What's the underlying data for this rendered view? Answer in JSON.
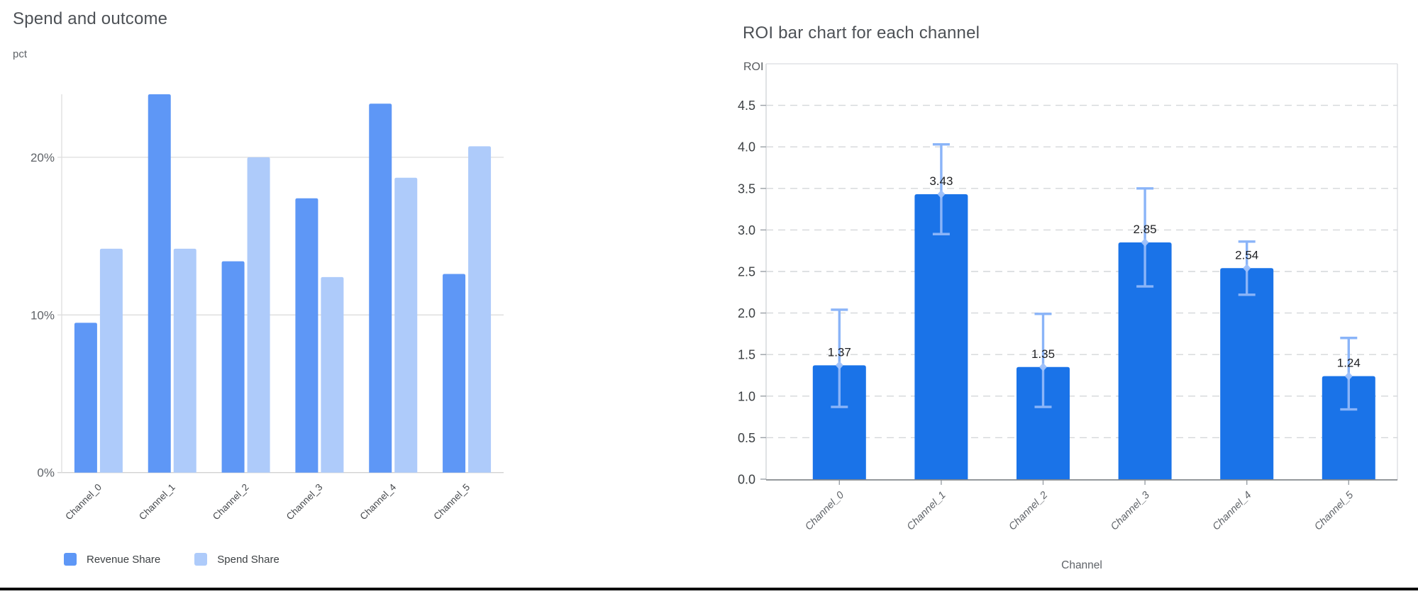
{
  "colors": {
    "revenue_share": "#5e97f6",
    "spend_share": "#aecbfa",
    "roi_bar": "#1a73e8",
    "roi_error": "#8ab4f8"
  },
  "chart_data": [
    {
      "type": "bar",
      "title": "Spend and outcome",
      "ylabel": "pct",
      "xlabel": "",
      "categories": [
        "Channel_0",
        "Channel_1",
        "Channel_2",
        "Channel_3",
        "Channel_4",
        "Channel_5"
      ],
      "series": [
        {
          "name": "Revenue Share",
          "color": "#5e97f6",
          "values": [
            9.5,
            24.0,
            13.4,
            17.4,
            23.4,
            12.6
          ]
        },
        {
          "name": "Spend Share",
          "color": "#aecbfa",
          "values": [
            14.2,
            14.2,
            20.0,
            12.4,
            18.7,
            20.7
          ]
        }
      ],
      "y_ticks": [
        {
          "label": "0%",
          "value": 0
        },
        {
          "label": "10%",
          "value": 10
        },
        {
          "label": "20%",
          "value": 20
        }
      ],
      "ylim": [
        0,
        24.0
      ],
      "grid": true,
      "legend_position": "bottom"
    },
    {
      "type": "bar",
      "title": "ROI bar chart for each channel",
      "ylabel": "ROI",
      "xlabel": "Channel",
      "categories": [
        "Channel_0",
        "Channel_1",
        "Channel_2",
        "Channel_3",
        "Channel_4",
        "Channel_5"
      ],
      "values": [
        1.37,
        3.43,
        1.35,
        2.85,
        2.54,
        1.24
      ],
      "bar_labels": [
        "1.37",
        "3.43",
        "1.35",
        "2.85",
        "2.54",
        "1.24"
      ],
      "error_low": [
        0.87,
        2.95,
        0.87,
        2.32,
        2.22,
        0.84
      ],
      "error_high": [
        2.04,
        4.03,
        1.99,
        3.5,
        2.86,
        1.7
      ],
      "bar_color": "#1a73e8",
      "error_color": "#8ab4f8",
      "y_ticks": [
        "0.0",
        "0.5",
        "1.0",
        "1.5",
        "2.0",
        "2.5",
        "3.0",
        "3.5",
        "4.0",
        "4.5"
      ],
      "y_tick_values": [
        0,
        0.5,
        1.0,
        1.5,
        2.0,
        2.5,
        3.0,
        3.5,
        4.0,
        4.5
      ],
      "ylim": [
        0,
        5.0
      ],
      "grid": "dashed",
      "legend_position": "none"
    }
  ]
}
